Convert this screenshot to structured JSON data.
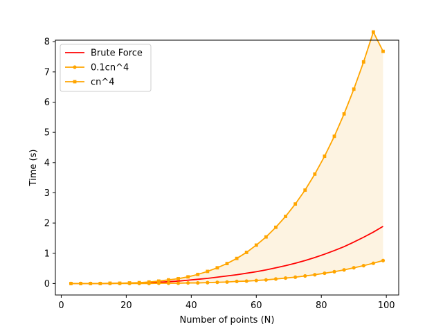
{
  "chart_data": {
    "type": "line",
    "title": "",
    "xlabel": "Number of points (N)",
    "ylabel": "Time (s)",
    "xlim": [
      -1.8,
      103.8
    ],
    "ylim": [
      -0.38,
      8.05
    ],
    "xticks": [
      0,
      20,
      40,
      60,
      80,
      100
    ],
    "yticks": [
      0,
      1,
      2,
      3,
      4,
      5,
      6,
      7,
      8
    ],
    "grid": false,
    "legend_position": "upper-left",
    "shaded_region": {
      "between": [
        "0.1cn^4",
        "cn^4"
      ],
      "color": "#fdf3e1"
    },
    "series": [
      {
        "name": "Brute Force",
        "color": "#ff0000",
        "marker": "none",
        "x": [
          3,
          6,
          9,
          12,
          15,
          18,
          21,
          24,
          27,
          30,
          33,
          36,
          39,
          42,
          45,
          48,
          51,
          54,
          57,
          60,
          63,
          66,
          69,
          72,
          75,
          78,
          81,
          84,
          87,
          90,
          93,
          96,
          99
        ],
        "y": [
          0.0,
          0.0,
          0.0,
          0.0,
          0.0,
          0.01,
          0.01,
          0.02,
          0.03,
          0.04,
          0.06,
          0.08,
          0.11,
          0.14,
          0.17,
          0.21,
          0.25,
          0.29,
          0.34,
          0.39,
          0.45,
          0.52,
          0.59,
          0.67,
          0.76,
          0.86,
          0.97,
          1.09,
          1.22,
          1.37,
          1.53,
          1.7,
          1.89
        ]
      },
      {
        "name": "0.1cn^4",
        "color": "#ffa500",
        "marker": "circle",
        "x": [
          3,
          6,
          9,
          12,
          15,
          18,
          21,
          24,
          27,
          30,
          33,
          36,
          39,
          42,
          45,
          48,
          51,
          54,
          57,
          60,
          63,
          66,
          69,
          72,
          75,
          78,
          81,
          84,
          87,
          90,
          93,
          96,
          99
        ],
        "y": [
          0.0,
          0.0,
          0.0,
          0.0,
          0.0,
          0.0,
          0.0,
          0.0,
          0.0,
          0.01,
          0.01,
          0.01,
          0.02,
          0.02,
          0.03,
          0.04,
          0.05,
          0.07,
          0.08,
          0.1,
          0.12,
          0.15,
          0.18,
          0.21,
          0.25,
          0.29,
          0.34,
          0.39,
          0.45,
          0.52,
          0.59,
          0.67,
          0.76
        ]
      },
      {
        "name": "cn^4",
        "color": "#ffa500",
        "marker": "square",
        "x": [
          3,
          6,
          9,
          12,
          15,
          18,
          21,
          24,
          27,
          30,
          33,
          36,
          39,
          42,
          45,
          48,
          51,
          54,
          57,
          60,
          63,
          66,
          69,
          72,
          75,
          78,
          81,
          84,
          87,
          90,
          93,
          96,
          99
        ],
        "y": [
          0.0,
          0.0,
          0.0,
          0.0,
          0.01,
          0.01,
          0.02,
          0.03,
          0.05,
          0.08,
          0.12,
          0.16,
          0.22,
          0.3,
          0.4,
          0.52,
          0.66,
          0.83,
          1.03,
          1.27,
          1.54,
          1.86,
          2.22,
          2.63,
          3.09,
          3.62,
          4.21,
          4.87,
          5.61,
          6.43,
          7.33,
          8.32,
          7.68
        ]
      }
    ]
  }
}
